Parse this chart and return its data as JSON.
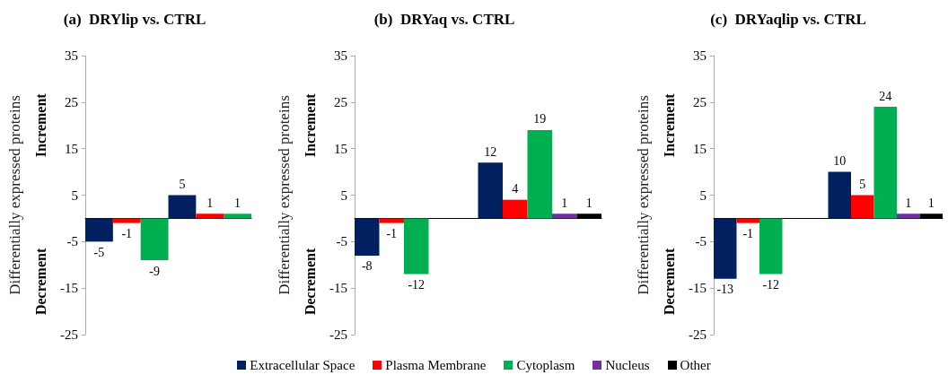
{
  "chart_data": [
    {
      "type": "bar",
      "title": "(a)  DRYlip vs. CTRL",
      "ylabel": "Differentially expressed proteins",
      "annotations": [
        "Increment",
        "Decrement"
      ],
      "categories": [
        null,
        null
      ],
      "series": [
        {
          "name": "Extracellular Space",
          "color": "#002060",
          "values": [
            -5,
            5
          ]
        },
        {
          "name": "Plasma Membrane",
          "color": "#ff0000",
          "values": [
            -1,
            1
          ]
        },
        {
          "name": "Cytoplasm",
          "color": "#00b050",
          "values": [
            -9,
            1
          ]
        }
      ],
      "ylim": [
        -25,
        35
      ],
      "yticks": [
        -25,
        -15,
        -5,
        5,
        15,
        25,
        35
      ],
      "grid": false,
      "legend": "bottom",
      "data_labels": true,
      "tick_labels": "y"
    },
    {
      "type": "bar",
      "title": "(b)  DRYaq vs. CTRL",
      "ylabel": "Differentially expressed proteins",
      "annotations": [
        "Increment",
        "Decrement"
      ],
      "categories": [
        null,
        null
      ],
      "series": [
        {
          "name": "Extracellular Space",
          "color": "#002060",
          "values": [
            -8,
            12
          ]
        },
        {
          "name": "Plasma Membrane",
          "color": "#ff0000",
          "values": [
            -1,
            4
          ]
        },
        {
          "name": "Cytoplasm",
          "color": "#00b050",
          "values": [
            -12,
            19
          ]
        },
        {
          "name": "Nucleus",
          "color": "#7030a0",
          "values": [
            null,
            1
          ]
        },
        {
          "name": "Other",
          "color": "#000000",
          "values": [
            null,
            1
          ]
        }
      ],
      "ylim": [
        -25,
        35
      ],
      "yticks": [
        -25,
        -15,
        -5,
        5,
        15,
        25,
        35
      ],
      "grid": false,
      "legend": "bottom",
      "data_labels": true,
      "tick_labels": "y"
    },
    {
      "type": "bar",
      "title": "(c)  DRYaqlip vs. CTRL",
      "ylabel": "Differentially expressed proteins",
      "annotations": [
        "Increment",
        "Decrement"
      ],
      "categories": [
        null,
        null
      ],
      "series": [
        {
          "name": "Extracellular Space",
          "color": "#002060",
          "values": [
            -13,
            10
          ]
        },
        {
          "name": "Plasma Membrane",
          "color": "#ff0000",
          "values": [
            -1,
            5
          ]
        },
        {
          "name": "Cytoplasm",
          "color": "#00b050",
          "values": [
            -12,
            24
          ]
        },
        {
          "name": "Nucleus",
          "color": "#7030a0",
          "values": [
            null,
            1
          ]
        },
        {
          "name": "Other",
          "color": "#000000",
          "values": [
            null,
            1
          ]
        }
      ],
      "ylim": [
        -25,
        35
      ],
      "yticks": [
        -25,
        -15,
        -5,
        5,
        15,
        25,
        35
      ],
      "grid": false,
      "legend": "bottom",
      "data_labels": true,
      "tick_labels": "y"
    }
  ]
}
